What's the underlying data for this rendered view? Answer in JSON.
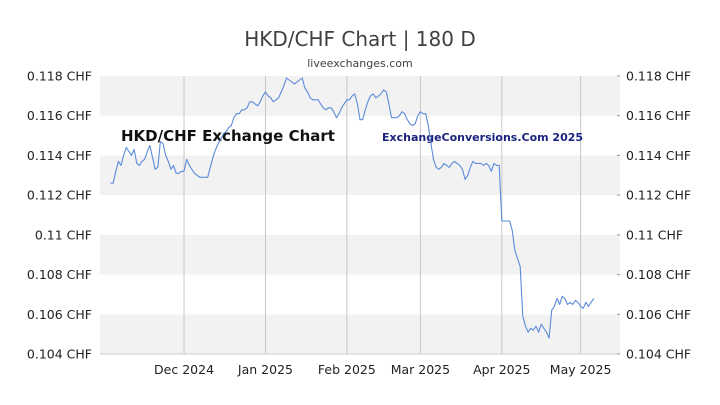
{
  "chart_data": {
    "type": "line",
    "title": "HKD/CHF Chart | 180 D",
    "subtitle": "liveexchanges.com",
    "watermark_left": "HKD/CHF Exchange Chart",
    "watermark_right": "ExchangeConversions.Com 2025",
    "ylim": [
      0.104,
      0.118
    ],
    "y_ticks": [
      {
        "value": 0.118,
        "label": "0.118 CHF"
      },
      {
        "value": 0.116,
        "label": "0.116 CHF"
      },
      {
        "value": 0.114,
        "label": "0.114 CHF"
      },
      {
        "value": 0.112,
        "label": "0.112 CHF"
      },
      {
        "value": 0.11,
        "label": "0.11 CHF"
      },
      {
        "value": 0.108,
        "label": "0.108 CHF"
      },
      {
        "value": 0.106,
        "label": "0.106 CHF"
      },
      {
        "value": 0.104,
        "label": "0.104 CHF"
      }
    ],
    "x_ticks": [
      {
        "index": 28,
        "label": "Dec 2024"
      },
      {
        "index": 59,
        "label": "Jan 2025"
      },
      {
        "index": 90,
        "label": "Feb 2025"
      },
      {
        "index": 118,
        "label": "Mar 2025"
      },
      {
        "index": 149,
        "label": "Apr 2025"
      },
      {
        "index": 179,
        "label": "May 2025"
      }
    ],
    "xlim": [
      -4,
      194
    ],
    "grid": true,
    "line_color": "#5b8bd9",
    "series": [
      {
        "values": [
          0.1126,
          0.1126,
          0.1132,
          0.1137,
          0.1135,
          0.114,
          0.1144,
          0.1142,
          0.114,
          0.1143,
          0.1136,
          0.1135,
          0.1137,
          0.1138,
          0.1142,
          0.1145,
          0.1139,
          0.1133,
          0.1134,
          0.1147,
          0.1146,
          0.114,
          0.1137,
          0.1133,
          0.1135,
          0.1131,
          0.1131,
          0.1132,
          0.1132,
          0.1138,
          0.1135,
          0.1133,
          0.1131,
          0.113,
          0.1129,
          0.1129,
          0.1129,
          0.1129,
          0.1134,
          0.1139,
          0.1143,
          0.1146,
          0.1148,
          0.1151,
          0.1152,
          0.1154,
          0.1155,
          0.1159,
          0.1161,
          0.1161,
          0.1163,
          0.1163,
          0.1164,
          0.1167,
          0.1167,
          0.1166,
          0.1165,
          0.1167,
          0.117,
          0.1172,
          0.117,
          0.1169,
          0.1167,
          0.1168,
          0.1169,
          0.1172,
          0.1175,
          0.1179,
          0.1178,
          0.1177,
          0.1176,
          0.1177,
          0.1178,
          0.1179,
          0.1174,
          0.1172,
          0.1169,
          0.1168,
          0.1168,
          0.1168,
          0.1166,
          0.1164,
          0.1163,
          0.1164,
          0.1164,
          0.1162,
          0.1159,
          0.1161,
          0.1164,
          0.1166,
          0.1168,
          0.1168,
          0.117,
          0.1171,
          0.1166,
          0.1158,
          0.1158,
          0.1163,
          0.1167,
          0.117,
          0.1171,
          0.1169,
          0.117,
          0.1171,
          0.1173,
          0.1172,
          0.1166,
          0.1159,
          0.1159,
          0.1159,
          0.116,
          0.1162,
          0.1161,
          0.1158,
          0.1156,
          0.1155,
          0.1156,
          0.116,
          0.1162,
          0.1161,
          0.1161,
          0.1155,
          0.1146,
          0.1138,
          0.1134,
          0.1133,
          0.1134,
          0.1136,
          0.1135,
          0.1134,
          0.1136,
          0.1137,
          0.1136,
          0.1135,
          0.1133,
          0.1128,
          0.113,
          0.1134,
          0.1137,
          0.1136,
          0.1136,
          0.1136,
          0.1135,
          0.1136,
          0.1135,
          0.1132,
          0.1136,
          0.1135,
          0.1135,
          0.1107,
          0.1107,
          0.1107,
          0.1107,
          0.1102,
          0.1092,
          0.1088,
          0.1084,
          0.1059,
          0.1054,
          0.1051,
          0.1053,
          0.1052,
          0.1054,
          0.1051,
          0.1055,
          0.1053,
          0.1051,
          0.1048,
          0.1062,
          0.1064,
          0.1068,
          0.1065,
          0.1069,
          0.1068,
          0.1065,
          0.1066,
          0.1065,
          0.1067,
          0.1066,
          0.1064,
          0.1063,
          0.1066,
          0.1064,
          0.1066,
          0.1068
        ]
      }
    ]
  }
}
